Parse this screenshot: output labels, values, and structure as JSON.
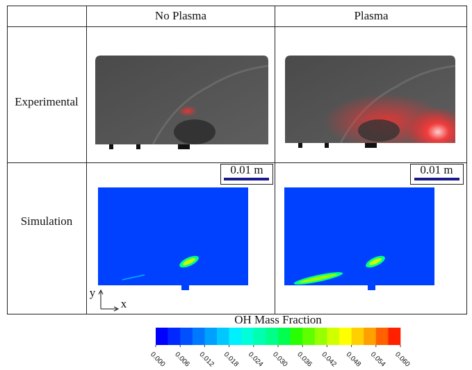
{
  "table": {
    "columns": [
      "No Plasma",
      "Plasma"
    ],
    "rows": [
      "Experimental",
      "Simulation"
    ]
  },
  "scale_bar": "0.01 m",
  "axes": {
    "y": "y",
    "x": "x"
  },
  "colorbar": {
    "title": "OH Mass Fraction",
    "lim": [
      0,
      0.06
    ],
    "ticks": [
      {
        "value": 0,
        "label": "0.000"
      },
      {
        "value": 0.006,
        "label": "0.006"
      },
      {
        "value": 0.012,
        "label": "0.012"
      },
      {
        "value": 0.018,
        "label": "0.018"
      },
      {
        "value": 0.024,
        "label": "0.024"
      },
      {
        "value": 0.03,
        "label": "0.030"
      },
      {
        "value": 0.036,
        "label": "0.036"
      },
      {
        "value": 0.042,
        "label": "0.042"
      },
      {
        "value": 0.048,
        "label": "0.048"
      },
      {
        "value": 0.054,
        "label": "0.054"
      },
      {
        "value": 0.06,
        "label": "0.060"
      }
    ],
    "colors": [
      "#0000ff",
      "#0028ff",
      "#0050ff",
      "#0078ff",
      "#00a0ff",
      "#00c8ff",
      "#00f0ff",
      "#00ffd8",
      "#00ffb0",
      "#00ff88",
      "#00ff50",
      "#28ff00",
      "#60ff00",
      "#98ff00",
      "#d0ff00",
      "#ffff00",
      "#ffd000",
      "#ffa000",
      "#ff6000",
      "#ff2000"
    ]
  }
}
